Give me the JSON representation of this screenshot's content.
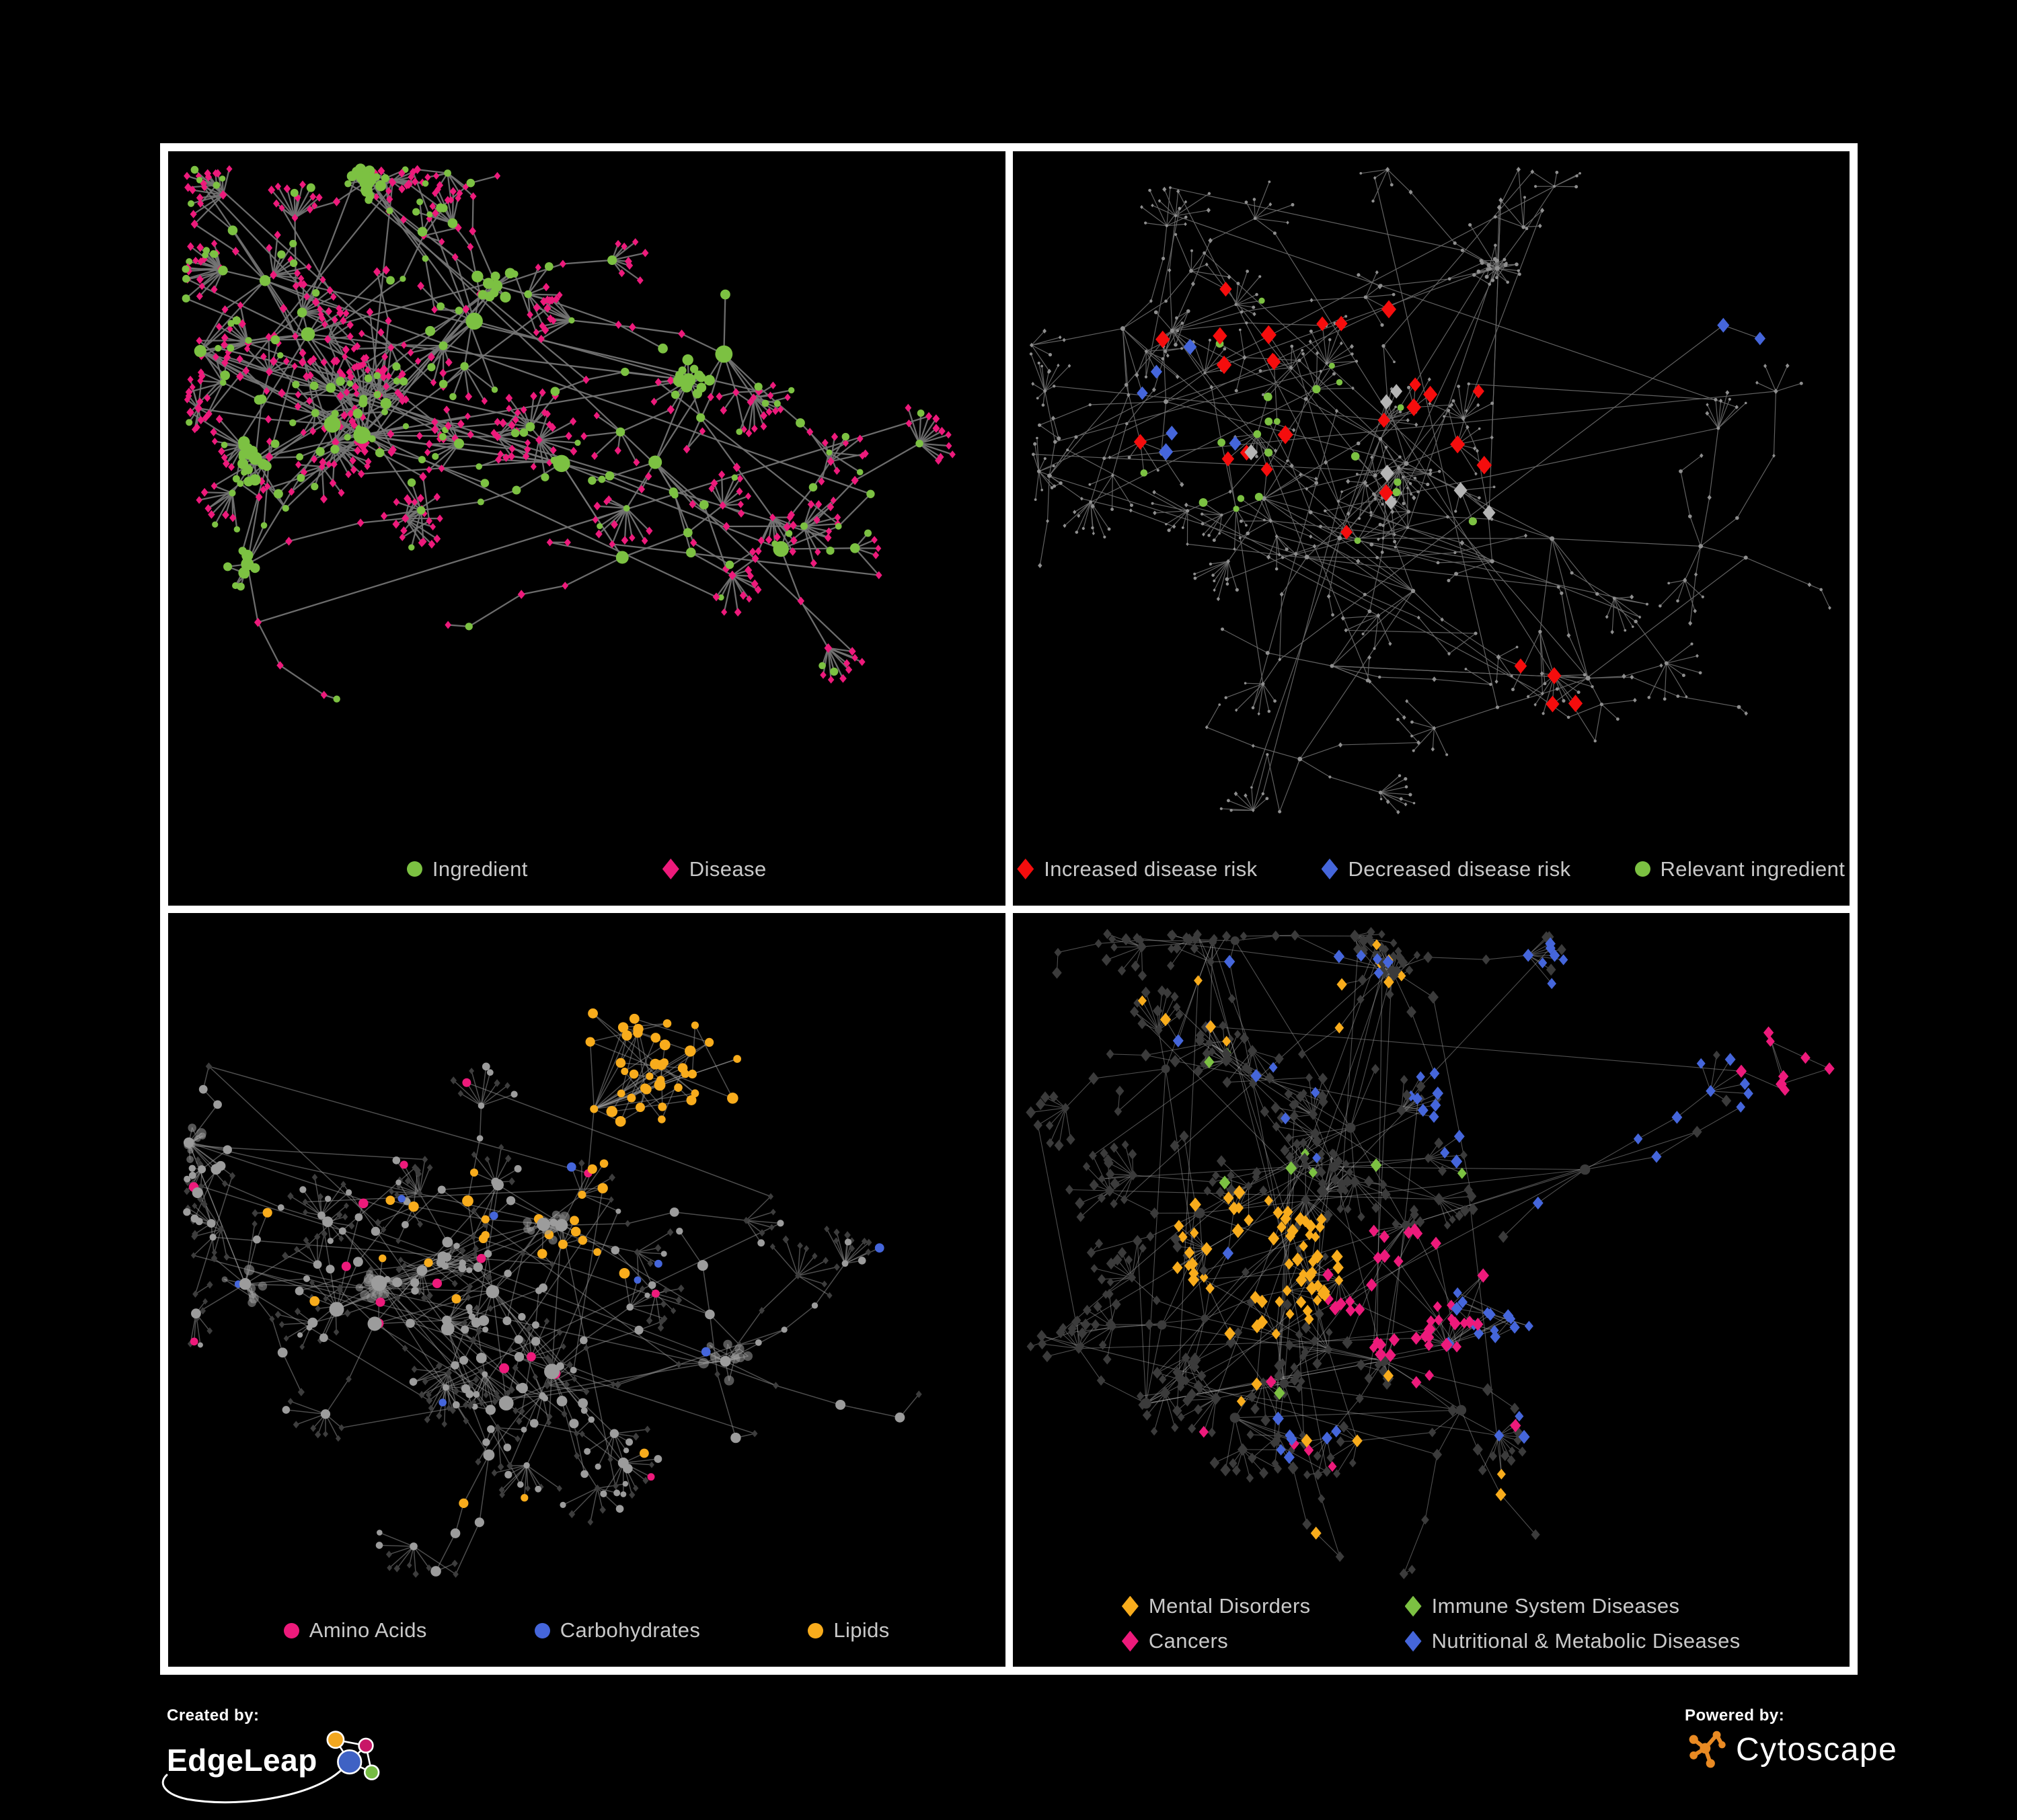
{
  "figure": {
    "background": "#000000",
    "frame_color": "#FFFFFF"
  },
  "colors": {
    "green": "#7CC142",
    "pink": "#ED1A7B",
    "red": "#F50D0D",
    "blue": "#4566DB",
    "orange": "#F8AC1C",
    "gray_node": "#9C9C9C",
    "light_gray": "#B5B5B5",
    "dark_gray": "#3B3B3B",
    "legend_text": "#C9C9C9",
    "cytoscape_orange": "#E98A23"
  },
  "panels": [
    {
      "id": "ingredient-disease",
      "legend": {
        "items": [
          {
            "label": "Ingredient",
            "shape": "circle",
            "color": "#7CC142"
          },
          {
            "label": "Disease",
            "shape": "diamond",
            "color": "#ED1A7B"
          }
        ]
      },
      "network": {
        "seed": 11,
        "area": [
          1244,
          1010
        ],
        "hubs": 18,
        "hubLinks": 6,
        "branch": [
          3,
          7
        ],
        "burstProb": 0.6,
        "burst": [
          5,
          12
        ],
        "blobs": 5,
        "crossLinks": 34,
        "edge": {
          "color": "#757575",
          "width": 2.3,
          "op": 0.92
        },
        "types": {
          "hub": [
            {
              "shape": "circle",
              "color": "#7CC142",
              "s": [
                8,
                13
              ],
              "w": 1
            }
          ],
          "blob": [
            {
              "shape": "circle",
              "color": "#7CC142",
              "s": [
                5,
                9
              ],
              "w": 1
            }
          ],
          "mid": [
            {
              "shape": "circle",
              "color": "#7CC142",
              "s": [
                4.5,
                7.5
              ],
              "w": 0.45
            },
            {
              "shape": "diamond",
              "color": "#ED1A7B",
              "s": [
                4.5,
                5.5
              ],
              "w": 0.55
            }
          ],
          "leaf": [
            {
              "shape": "diamond",
              "color": "#ED1A7B",
              "s": [
                4.2,
                5.2
              ],
              "w": 0.85
            },
            {
              "shape": "circle",
              "color": "#7CC142",
              "s": [
                4.5,
                6.5
              ],
              "w": 0.15
            }
          ]
        },
        "sprinkles": []
      }
    },
    {
      "id": "disease-risk",
      "legend": {
        "items": [
          {
            "label": "Increased disease risk",
            "shape": "diamond",
            "color": "#F50D0D"
          },
          {
            "label": "Decreased disease risk",
            "shape": "diamond",
            "color": "#4566DB"
          },
          {
            "label": "Relevant ingredient",
            "shape": "circle",
            "color": "#7CC142"
          }
        ]
      },
      "network": {
        "seed": 47,
        "area": [
          1244,
          1010
        ],
        "hubs": 20,
        "hubLinks": 8,
        "branch": [
          3,
          7
        ],
        "burstProb": 0.5,
        "burst": [
          4,
          10
        ],
        "blobs": 3,
        "crossLinks": 46,
        "edge": {
          "color": "#6B6B6B",
          "width": 1.2,
          "op": 0.9
        },
        "types": {
          "hub": [
            {
              "shape": "circle",
              "color": "#8F8F8F",
              "s": [
                2.4,
                3.6
              ],
              "w": 1
            }
          ],
          "blob": [
            {
              "shape": "circle",
              "color": "#8F8F8F",
              "s": [
                2,
                3
              ],
              "w": 1
            }
          ],
          "mid": [
            {
              "shape": "circle",
              "color": "#8F8F8F",
              "s": [
                2,
                3
              ],
              "w": 0.6
            },
            {
              "shape": "diamond",
              "color": "#8F8F8F",
              "s": [
                2.2,
                3.2
              ],
              "w": 0.4
            }
          ],
          "leaf": [
            {
              "shape": "circle",
              "color": "#8F8F8F",
              "s": [
                1.8,
                2.6
              ],
              "w": 0.6
            },
            {
              "shape": "diamond",
              "color": "#8F8F8F",
              "s": [
                2,
                3
              ],
              "w": 0.4
            }
          ]
        },
        "sprinkles": [
          {
            "shape": "diamond",
            "color": "#F50D0D",
            "s": [
              8,
              11
            ],
            "count": 24,
            "at": [
              0.38,
              0.37
            ],
            "r": [
              0.27,
              0.2
            ]
          },
          {
            "shape": "diamond",
            "color": "#F50D0D",
            "s": [
              8,
              10
            ],
            "count": 4,
            "at": [
              0.62,
              0.8
            ],
            "r": [
              0.1,
              0.09
            ]
          },
          {
            "shape": "diamond",
            "color": "#4566DB",
            "s": [
              7.5,
              10
            ],
            "count": 6,
            "at": [
              0.2,
              0.38
            ],
            "r": [
              0.08,
              0.1
            ]
          },
          {
            "shape": "diamond",
            "color": "#4566DB",
            "s": [
              7.5,
              9
            ],
            "count": 2,
            "at": [
              0.87,
              0.27
            ],
            "r": [
              0.04,
              0.03
            ]
          },
          {
            "shape": "circle",
            "color": "#7CC142",
            "s": [
              4.5,
              6.5
            ],
            "count": 22,
            "at": [
              0.38,
              0.4
            ],
            "r": [
              0.27,
              0.19
            ]
          },
          {
            "shape": "diamond",
            "color": "#B5B5B5",
            "s": [
              7.5,
              10
            ],
            "count": 7,
            "at": [
              0.4,
              0.42
            ],
            "r": [
              0.26,
              0.17
            ]
          }
        ]
      }
    },
    {
      "id": "compound-classes",
      "legend": {
        "items": [
          {
            "label": "Amino Acids",
            "shape": "circle",
            "color": "#ED1A7B"
          },
          {
            "label": "Carbohydrates",
            "shape": "circle",
            "color": "#4566DB"
          },
          {
            "label": "Lipids",
            "shape": "circle",
            "color": "#F8AC1C"
          }
        ]
      },
      "network": {
        "seed": 83,
        "area": [
          1244,
          1010
        ],
        "hubs": 16,
        "hubLinks": 6,
        "branch": [
          3,
          7
        ],
        "burstProb": 0.55,
        "burst": [
          5,
          12
        ],
        "blobs": 5,
        "crossLinks": 30,
        "edge": {
          "color": "#9A9A9A",
          "width": 1.5,
          "op": 0.5
        },
        "types": {
          "hub": [
            {
              "shape": "circle",
              "color": "#9C9C9C",
              "s": [
                7,
                12
              ],
              "w": 1
            }
          ],
          "blob": [
            {
              "shape": "circle",
              "color": "#9C9C9C",
              "s": [
                4.5,
                8
              ],
              "w": 1,
              "op": 0.55
            }
          ],
          "mid": [
            {
              "shape": "circle",
              "color": "#9C9C9C",
              "s": [
                4.5,
                8
              ],
              "w": 0.7
            },
            {
              "shape": "diamond",
              "color": "#3D3D3D",
              "s": [
                3.8,
                4.8
              ],
              "w": 0.3
            }
          ],
          "leaf": [
            {
              "shape": "diamond",
              "color": "#3D3D3D",
              "s": [
                3.6,
                4.6
              ],
              "w": 0.8
            },
            {
              "shape": "circle",
              "color": "#9C9C9C",
              "s": [
                4,
                6
              ],
              "w": 0.2
            }
          ]
        },
        "sprinkles": [
          {
            "shape": "circle",
            "color": "#F8AC1C",
            "s": [
              5.5,
              8.5
            ],
            "count": 40,
            "at": [
              0.58,
              0.22
            ],
            "r": [
              0.1,
              0.1
            ]
          },
          {
            "shape": "circle",
            "color": "#F8AC1C",
            "s": [
              5.5,
              8.5
            ],
            "count": 16,
            "at": [
              0.47,
              0.43
            ],
            "r": [
              0.13,
              0.09
            ]
          },
          {
            "shape": "circle",
            "color": "#F8AC1C",
            "s": [
              5.5,
              8
            ],
            "count": 12,
            "at": [
              0.5,
              0.55
            ],
            "r": [
              0.45,
              0.42
            ]
          },
          {
            "shape": "circle",
            "color": "#ED1A7B",
            "s": [
              5.5,
              8
            ],
            "count": 16,
            "at": [
              0.42,
              0.55
            ],
            "r": [
              0.42,
              0.42
            ]
          },
          {
            "shape": "circle",
            "color": "#4566DB",
            "s": [
              5,
              7.5
            ],
            "count": 9,
            "at": [
              0.5,
              0.45
            ],
            "r": [
              0.45,
              0.4
            ]
          }
        ]
      }
    },
    {
      "id": "disease-categories",
      "legend": {
        "items": [
          {
            "label": "Mental Disorders",
            "shape": "diamond",
            "color": "#F8AC1C"
          },
          {
            "label": "Immune System Diseases",
            "shape": "diamond",
            "color": "#7CC142"
          },
          {
            "label": "Cancers",
            "shape": "diamond",
            "color": "#ED1A7B"
          },
          {
            "label": "Nutritional & Metabolic Diseases",
            "shape": "diamond",
            "color": "#4566DB"
          }
        ]
      },
      "network": {
        "seed": 129,
        "area": [
          1244,
          1010
        ],
        "hubs": 18,
        "hubLinks": 7,
        "branch": [
          3,
          7
        ],
        "burstProb": 0.55,
        "burst": [
          5,
          12
        ],
        "blobs": 6,
        "crossLinks": 50,
        "edge": {
          "color": "#9E9E9E",
          "width": 1.1,
          "op": 0.5
        },
        "types": {
          "hub": [
            {
              "shape": "circle",
              "color": "#3B3B3B",
              "s": [
                5,
                8
              ],
              "w": 1
            }
          ],
          "blob": [
            {
              "shape": "diamond",
              "color": "#3B3B3B",
              "s": [
                5,
                7
              ],
              "w": 1
            }
          ],
          "mid": [
            {
              "shape": "diamond",
              "color": "#3B3B3B",
              "s": [
                5,
                7.5
              ],
              "w": 1
            }
          ],
          "leaf": [
            {
              "shape": "diamond",
              "color": "#3B3B3B",
              "s": [
                4.8,
                7
              ],
              "w": 1
            }
          ]
        },
        "sprinkles": [
          {
            "shape": "diamond",
            "color": "#F8AC1C",
            "s": [
              6,
              8.5
            ],
            "count": 64,
            "at": [
              0.28,
              0.52
            ],
            "r": [
              0.12,
              0.11
            ]
          },
          {
            "shape": "diamond",
            "color": "#F8AC1C",
            "s": [
              6,
              8
            ],
            "count": 12,
            "at": [
              0.38,
              0.12
            ],
            "r": [
              0.25,
              0.1
            ]
          },
          {
            "shape": "diamond",
            "color": "#F8AC1C",
            "s": [
              6,
              8
            ],
            "count": 8,
            "at": [
              0.5,
              0.8
            ],
            "r": [
              0.3,
              0.18
            ]
          },
          {
            "shape": "diamond",
            "color": "#ED1A7B",
            "s": [
              6,
              8.5
            ],
            "count": 40,
            "at": [
              0.47,
              0.56
            ],
            "r": [
              0.1,
              0.1
            ]
          },
          {
            "shape": "diamond",
            "color": "#ED1A7B",
            "s": [
              6,
              8
            ],
            "count": 8,
            "at": [
              0.92,
              0.2
            ],
            "r": [
              0.06,
              0.07
            ]
          },
          {
            "shape": "diamond",
            "color": "#ED1A7B",
            "s": [
              6,
              8
            ],
            "count": 8,
            "at": [
              0.4,
              0.8
            ],
            "r": [
              0.3,
              0.17
            ]
          },
          {
            "shape": "diamond",
            "color": "#4566DB",
            "s": [
              6,
              8.5
            ],
            "count": 14,
            "at": [
              0.56,
              0.6
            ],
            "r": [
              0.06,
              0.06
            ]
          },
          {
            "shape": "diamond",
            "color": "#4566DB",
            "s": [
              6,
              8
            ],
            "count": 26,
            "at": [
              0.72,
              0.25
            ],
            "r": [
              0.25,
              0.22
            ]
          },
          {
            "shape": "diamond",
            "color": "#4566DB",
            "s": [
              6,
              8
            ],
            "count": 16,
            "at": [
              0.35,
              0.3
            ],
            "r": [
              0.25,
              0.25
            ]
          },
          {
            "shape": "diamond",
            "color": "#4566DB",
            "s": [
              6,
              8
            ],
            "count": 10,
            "at": [
              0.6,
              0.8
            ],
            "r": [
              0.3,
              0.17
            ]
          },
          {
            "shape": "diamond",
            "color": "#7CC142",
            "s": [
              6,
              8
            ],
            "count": 9,
            "at": [
              0.45,
              0.4
            ],
            "r": [
              0.35,
              0.35
            ]
          }
        ]
      }
    }
  ],
  "footer": {
    "created_by": "Created by:",
    "created_brand": "EdgeLeap",
    "powered_by": "Powered by:",
    "powered_brand": "Cytoscape"
  }
}
